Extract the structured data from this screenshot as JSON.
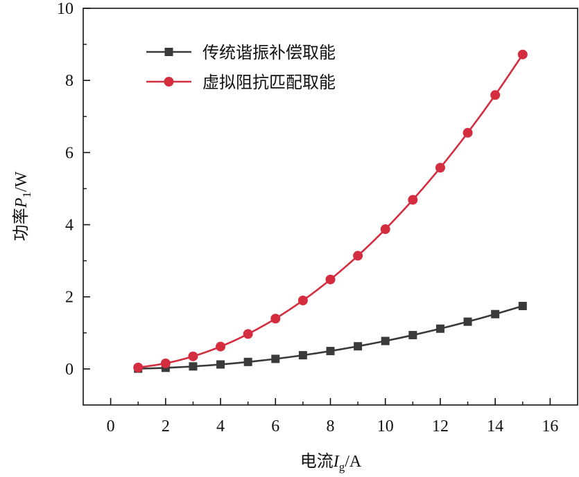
{
  "chart_data": {
    "type": "line",
    "x": [
      1,
      2,
      3,
      4,
      5,
      6,
      7,
      8,
      9,
      10,
      11,
      12,
      13,
      14,
      15
    ],
    "series": [
      {
        "name": "传统谐振补偿取能",
        "color": "#3a3a3a",
        "marker": "square",
        "values": [
          0.008,
          0.031,
          0.07,
          0.124,
          0.194,
          0.279,
          0.38,
          0.496,
          0.628,
          0.775,
          0.938,
          1.116,
          1.31,
          1.52,
          1.745
        ]
      },
      {
        "name": "虚拟阻抗匹配取能",
        "color": "#d42d3f",
        "marker": "circle",
        "values": [
          0.039,
          0.155,
          0.349,
          0.62,
          0.969,
          1.395,
          1.899,
          2.48,
          3.139,
          3.875,
          4.689,
          5.58,
          6.549,
          7.595,
          8.719
        ]
      }
    ],
    "xlabel": {
      "main": "电流",
      "italic": "I",
      "sub": "g",
      "unit": "/A"
    },
    "ylabel": {
      "main": "功率",
      "italic": "P",
      "sub": "1",
      "unit": "/W"
    },
    "xlim": [
      -1,
      17
    ],
    "ylim": [
      -1,
      10
    ],
    "xticks": [
      "0",
      "2",
      "4",
      "6",
      "8",
      "10",
      "12",
      "14",
      "16"
    ],
    "yticks": [
      "0",
      "2",
      "4",
      "6",
      "8",
      "10"
    ],
    "grid": false,
    "legend_position": "top-left"
  }
}
